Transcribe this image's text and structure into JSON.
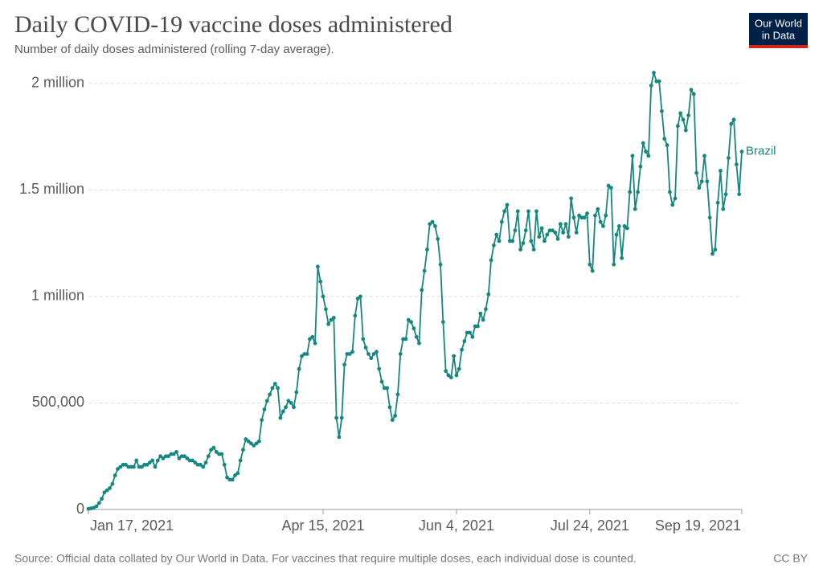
{
  "chart_data": {
    "type": "line",
    "title": "Daily COVID-19 vaccine doses administered",
    "subtitle": "Number of daily doses administered (rolling 7-day average).",
    "source": "Source: Official data collated by Our World in Data. For vaccines that require multiple doses, each individual dose is counted.",
    "license": "CC BY",
    "logo_lines": [
      "Our World",
      "in Data"
    ],
    "grid": true,
    "ylim": [
      0,
      2120000
    ],
    "yticks": [
      0,
      {
        "value": 500000,
        "label": "500,000"
      },
      {
        "value": 1000000,
        "label": "1 million"
      },
      {
        "value": 1500000,
        "label": "1.5 million"
      },
      {
        "value": 2000000,
        "label": "2 million"
      }
    ],
    "xlim": [
      "2021-01-17",
      "2021-09-19"
    ],
    "xticks": [
      {
        "value": "2021-01-17",
        "label": "Jan 17, 2021"
      },
      {
        "value": "2021-04-15",
        "label": "Apr 15, 2021"
      },
      {
        "value": "2021-06-04",
        "label": "Jun 4, 2021"
      },
      {
        "value": "2021-07-24",
        "label": "Jul 24, 2021"
      },
      {
        "value": "2021-09-19",
        "label": "Sep 19, 2021"
      }
    ],
    "x": [
      "2021-01-17",
      "2021-01-18",
      "2021-01-19",
      "2021-01-20",
      "2021-01-21",
      "2021-01-22",
      "2021-01-23",
      "2021-01-24",
      "2021-01-25",
      "2021-01-26",
      "2021-01-27",
      "2021-01-28",
      "2021-01-29",
      "2021-01-30",
      "2021-01-31",
      "2021-02-01",
      "2021-02-02",
      "2021-02-03",
      "2021-02-04",
      "2021-02-05",
      "2021-02-06",
      "2021-02-07",
      "2021-02-08",
      "2021-02-09",
      "2021-02-10",
      "2021-02-11",
      "2021-02-12",
      "2021-02-13",
      "2021-02-14",
      "2021-02-15",
      "2021-02-16",
      "2021-02-17",
      "2021-02-18",
      "2021-02-19",
      "2021-02-20",
      "2021-02-21",
      "2021-02-22",
      "2021-02-23",
      "2021-02-24",
      "2021-02-25",
      "2021-02-26",
      "2021-02-27",
      "2021-02-28",
      "2021-03-01",
      "2021-03-02",
      "2021-03-03",
      "2021-03-04",
      "2021-03-05",
      "2021-03-06",
      "2021-03-07",
      "2021-03-08",
      "2021-03-09",
      "2021-03-10",
      "2021-03-11",
      "2021-03-12",
      "2021-03-13",
      "2021-03-14",
      "2021-03-15",
      "2021-03-16",
      "2021-03-17",
      "2021-03-18",
      "2021-03-19",
      "2021-03-20",
      "2021-03-21",
      "2021-03-22",
      "2021-03-23",
      "2021-03-24",
      "2021-03-25",
      "2021-03-26",
      "2021-03-27",
      "2021-03-28",
      "2021-03-29",
      "2021-03-30",
      "2021-03-31",
      "2021-04-01",
      "2021-04-02",
      "2021-04-03",
      "2021-04-04",
      "2021-04-05",
      "2021-04-06",
      "2021-04-07",
      "2021-04-08",
      "2021-04-09",
      "2021-04-10",
      "2021-04-11",
      "2021-04-12",
      "2021-04-13",
      "2021-04-14",
      "2021-04-15",
      "2021-04-16",
      "2021-04-17",
      "2021-04-18",
      "2021-04-19",
      "2021-04-20",
      "2021-04-21",
      "2021-04-22",
      "2021-04-23",
      "2021-04-24",
      "2021-04-25",
      "2021-04-26",
      "2021-04-27",
      "2021-04-28",
      "2021-04-29",
      "2021-04-30",
      "2021-05-01",
      "2021-05-02",
      "2021-05-03",
      "2021-05-04",
      "2021-05-05",
      "2021-05-06",
      "2021-05-07",
      "2021-05-08",
      "2021-05-09",
      "2021-05-10",
      "2021-05-11",
      "2021-05-12",
      "2021-05-13",
      "2021-05-14",
      "2021-05-15",
      "2021-05-16",
      "2021-05-17",
      "2021-05-18",
      "2021-05-19",
      "2021-05-20",
      "2021-05-21",
      "2021-05-22",
      "2021-05-23",
      "2021-05-24",
      "2021-05-25",
      "2021-05-26",
      "2021-05-27",
      "2021-05-28",
      "2021-05-29",
      "2021-05-30",
      "2021-05-31",
      "2021-06-01",
      "2021-06-02",
      "2021-06-03",
      "2021-06-04",
      "2021-06-05",
      "2021-06-06",
      "2021-06-07",
      "2021-06-08",
      "2021-06-09",
      "2021-06-10",
      "2021-06-11",
      "2021-06-12",
      "2021-06-13",
      "2021-06-14",
      "2021-06-15",
      "2021-06-16",
      "2021-06-17",
      "2021-06-18",
      "2021-06-19",
      "2021-06-20",
      "2021-06-21",
      "2021-06-22",
      "2021-06-23",
      "2021-06-24",
      "2021-06-25",
      "2021-06-26",
      "2021-06-27",
      "2021-06-28",
      "2021-06-29",
      "2021-06-30",
      "2021-07-01",
      "2021-07-02",
      "2021-07-03",
      "2021-07-04",
      "2021-07-05",
      "2021-07-06",
      "2021-07-07",
      "2021-07-08",
      "2021-07-09",
      "2021-07-10",
      "2021-07-11",
      "2021-07-12",
      "2021-07-13",
      "2021-07-14",
      "2021-07-15",
      "2021-07-16",
      "2021-07-17",
      "2021-07-18",
      "2021-07-19",
      "2021-07-20",
      "2021-07-21",
      "2021-07-22",
      "2021-07-23",
      "2021-07-24",
      "2021-07-25",
      "2021-07-26",
      "2021-07-27",
      "2021-07-28",
      "2021-07-29",
      "2021-07-30",
      "2021-07-31",
      "2021-08-01",
      "2021-08-02",
      "2021-08-03",
      "2021-08-04",
      "2021-08-05",
      "2021-08-06",
      "2021-08-07",
      "2021-08-08",
      "2021-08-09",
      "2021-08-10",
      "2021-08-11",
      "2021-08-12",
      "2021-08-13",
      "2021-08-14",
      "2021-08-15",
      "2021-08-16",
      "2021-08-17",
      "2021-08-18",
      "2021-08-19",
      "2021-08-20",
      "2021-08-21",
      "2021-08-22",
      "2021-08-23",
      "2021-08-24",
      "2021-08-25",
      "2021-08-26",
      "2021-08-27",
      "2021-08-28",
      "2021-08-29",
      "2021-08-30",
      "2021-08-31",
      "2021-09-01",
      "2021-09-02",
      "2021-09-03",
      "2021-09-04",
      "2021-09-05",
      "2021-09-06",
      "2021-09-07",
      "2021-09-08",
      "2021-09-09",
      "2021-09-10",
      "2021-09-11",
      "2021-09-12",
      "2021-09-13",
      "2021-09-14",
      "2021-09-15",
      "2021-09-16",
      "2021-09-17",
      "2021-09-18",
      "2021-09-19"
    ],
    "series": [
      {
        "name": "Brazil",
        "color": "#16877f",
        "values": [
          3000,
          5000,
          8000,
          15000,
          30000,
          50000,
          80000,
          90000,
          100000,
          120000,
          160000,
          190000,
          200000,
          210000,
          210000,
          200000,
          200000,
          200000,
          230000,
          200000,
          200000,
          210000,
          210000,
          220000,
          230000,
          200000,
          230000,
          250000,
          240000,
          250000,
          250000,
          260000,
          260000,
          270000,
          240000,
          250000,
          250000,
          240000,
          230000,
          230000,
          220000,
          210000,
          210000,
          200000,
          220000,
          250000,
          280000,
          290000,
          270000,
          260000,
          260000,
          210000,
          150000,
          140000,
          140000,
          160000,
          170000,
          230000,
          280000,
          330000,
          320000,
          310000,
          300000,
          310000,
          320000,
          420000,
          470000,
          510000,
          540000,
          570000,
          590000,
          570000,
          430000,
          460000,
          480000,
          510000,
          500000,
          480000,
          550000,
          660000,
          720000,
          730000,
          730000,
          800000,
          810000,
          780000,
          1140000,
          1070000,
          1000000,
          940000,
          870000,
          890000,
          900000,
          430000,
          340000,
          430000,
          680000,
          730000,
          730000,
          740000,
          910000,
          990000,
          1000000,
          800000,
          760000,
          730000,
          710000,
          730000,
          740000,
          660000,
          600000,
          570000,
          570000,
          480000,
          420000,
          440000,
          540000,
          730000,
          800000,
          800000,
          890000,
          880000,
          850000,
          810000,
          780000,
          1030000,
          1120000,
          1220000,
          1340000,
          1350000,
          1330000,
          1270000,
          1150000,
          880000,
          650000,
          630000,
          620000,
          720000,
          630000,
          660000,
          750000,
          790000,
          830000,
          830000,
          810000,
          860000,
          860000,
          920000,
          890000,
          940000,
          1010000,
          1170000,
          1240000,
          1290000,
          1260000,
          1350000,
          1400000,
          1430000,
          1260000,
          1260000,
          1310000,
          1400000,
          1220000,
          1250000,
          1310000,
          1400000,
          1260000,
          1220000,
          1400000,
          1280000,
          1320000,
          1260000,
          1290000,
          1310000,
          1310000,
          1300000,
          1270000,
          1340000,
          1300000,
          1340000,
          1280000,
          1460000,
          1370000,
          1300000,
          1380000,
          1370000,
          1370000,
          1390000,
          1150000,
          1120000,
          1380000,
          1410000,
          1350000,
          1330000,
          1380000,
          1520000,
          1510000,
          1150000,
          1290000,
          1330000,
          1180000,
          1330000,
          1320000,
          1490000,
          1660000,
          1410000,
          1490000,
          1610000,
          1720000,
          1680000,
          1660000,
          1990000,
          2050000,
          2010000,
          2010000,
          1870000,
          1740000,
          1710000,
          1490000,
          1430000,
          1460000,
          1800000,
          1860000,
          1830000,
          1780000,
          1850000,
          1970000,
          1950000,
          1580000,
          1510000,
          1540000,
          1660000,
          1540000,
          1370000,
          1200000,
          1220000,
          1440000,
          1590000,
          1410000,
          1480000,
          1650000,
          1810000,
          1830000,
          1620000,
          1480000,
          1680000
        ]
      }
    ]
  }
}
